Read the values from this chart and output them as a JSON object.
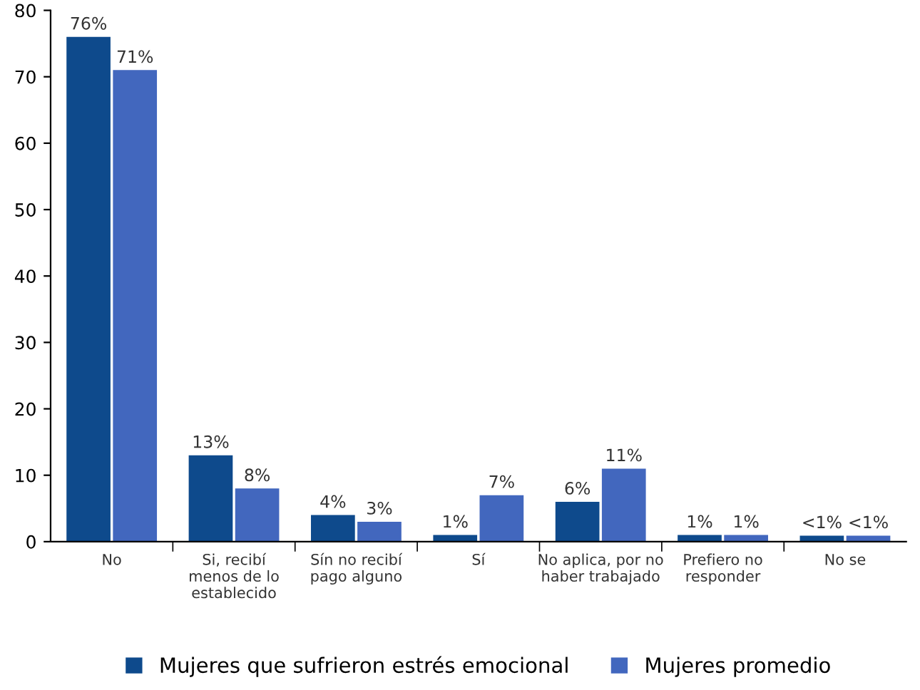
{
  "chart_data": {
    "type": "bar",
    "categories": [
      "No",
      "Si, recibí\nmenos de lo\nestablecido",
      "Sín no recibí\npago alguno",
      "Sí",
      "No aplica, por no\nhaber trabajado",
      "Prefiero no\nresponder",
      "No se"
    ],
    "series": [
      {
        "name": "Mujeres que sufrieron estrés emocional",
        "color": "#0e4a8c",
        "values": [
          76,
          13,
          4,
          1,
          6,
          1,
          0.9
        ],
        "value_labels": [
          "76%",
          "13%",
          "4%",
          "1%",
          "6%",
          "1%",
          "<1%"
        ]
      },
      {
        "name": "Mujeres promedio",
        "color": "#4267be",
        "values": [
          71,
          8,
          3,
          7,
          11,
          1,
          0.9
        ],
        "value_labels": [
          "71%",
          "8%",
          "3%",
          "7%",
          "11%",
          "1%",
          "<1%"
        ]
      }
    ],
    "ylim": [
      0,
      80
    ],
    "yticks": [
      0,
      10,
      20,
      30,
      40,
      50,
      60,
      70,
      80
    ],
    "grid": false,
    "legend": "bottom"
  }
}
